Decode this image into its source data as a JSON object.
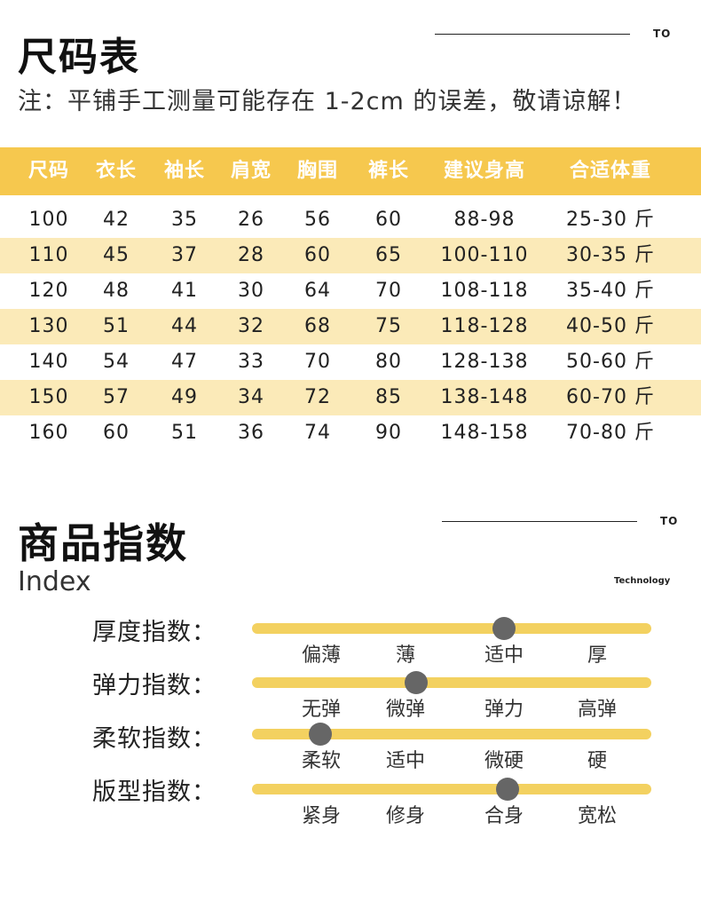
{
  "size_chart": {
    "title": "尺码表",
    "note": "注：平铺手工测量可能存在 1-2cm 的误差，敬请谅解！",
    "tag": "TO",
    "headers": [
      "尺码",
      "衣长",
      "袖长",
      "肩宽",
      "胸围",
      "裤长",
      "建议身高",
      "合适体重"
    ],
    "rows": [
      [
        "100",
        "42",
        "35",
        "26",
        "56",
        "60",
        "88-98",
        "25-30 斤"
      ],
      [
        "110",
        "45",
        "37",
        "28",
        "60",
        "65",
        "100-110",
        "30-35 斤"
      ],
      [
        "120",
        "48",
        "41",
        "30",
        "64",
        "70",
        "108-118",
        "35-40 斤"
      ],
      [
        "130",
        "51",
        "44",
        "32",
        "68",
        "75",
        "118-128",
        "40-50 斤"
      ],
      [
        "140",
        "54",
        "47",
        "33",
        "70",
        "80",
        "128-138",
        "50-60 斤"
      ],
      [
        "150",
        "57",
        "49",
        "34",
        "72",
        "85",
        "138-148",
        "60-70 斤"
      ],
      [
        "160",
        "60",
        "51",
        "36",
        "74",
        "90",
        "148-158",
        "70-80 斤"
      ]
    ]
  },
  "product_index": {
    "title": "商品指数",
    "subtitle": "Index",
    "tag": "TO",
    "tag_small": "Technology",
    "colors": {
      "track": "#f3d160",
      "knob": "#666666",
      "header": "#f6c84e",
      "row_alt": "#fbeab8"
    },
    "items": [
      {
        "label": "厚度指数：",
        "options": [
          "偏薄",
          "薄",
          "适中",
          "厚"
        ],
        "level": 0.63
      },
      {
        "label": "弹力指数：",
        "options": [
          "无弹",
          "微弹",
          "弹力",
          "高弹"
        ],
        "level": 0.41
      },
      {
        "label": "柔软指数：",
        "options": [
          "柔软",
          "适中",
          "微硬",
          "硬"
        ],
        "level": 0.17
      },
      {
        "label": "版型指数：",
        "options": [
          "紧身",
          "修身",
          "合身",
          "宽松"
        ],
        "level": 0.64
      }
    ]
  }
}
